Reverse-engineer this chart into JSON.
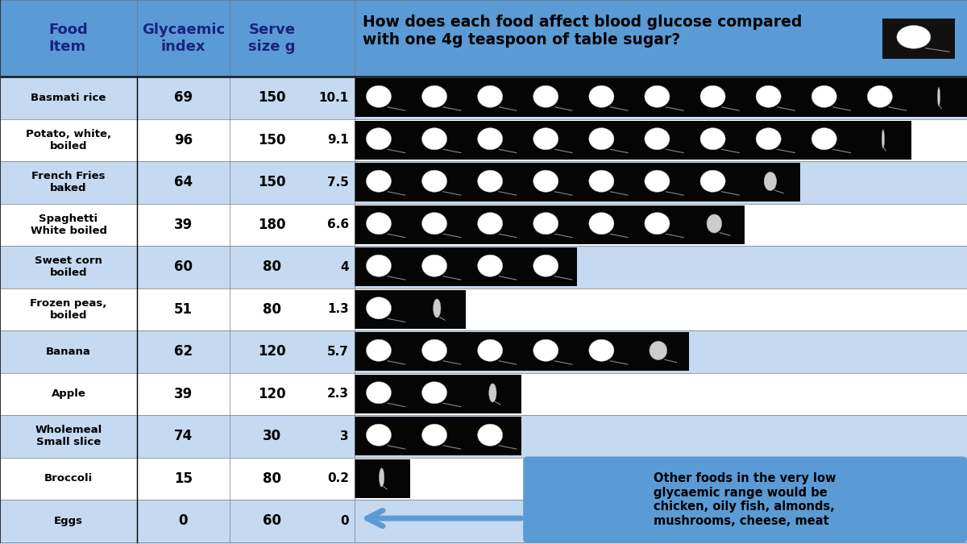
{
  "foods": [
    {
      "name": "Basmati rice",
      "gi": 69,
      "serve": 150,
      "gl": 10.1
    },
    {
      "name": "Potato, white,\nboiled",
      "gi": 96,
      "serve": 150,
      "gl": 9.1
    },
    {
      "name": "French Fries\nbaked",
      "gi": 64,
      "serve": 150,
      "gl": 7.5
    },
    {
      "name": "Spaghetti\nWhite boiled",
      "gi": 39,
      "serve": 180,
      "gl": 6.6
    },
    {
      "name": "Sweet corn\nboiled",
      "gi": 60,
      "serve": 80,
      "gl": 4.0
    },
    {
      "name": "Frozen peas,\nboiled",
      "gi": 51,
      "serve": 80,
      "gl": 1.3
    },
    {
      "name": "Banana",
      "gi": 62,
      "serve": 120,
      "gl": 5.7
    },
    {
      "name": "Apple",
      "gi": 39,
      "serve": 120,
      "gl": 2.3
    },
    {
      "name": "Wholemeal\nSmall slice",
      "gi": 74,
      "serve": 30,
      "gl": 3.0
    },
    {
      "name": "Broccoli",
      "gi": 15,
      "serve": 80,
      "gl": 0.2
    },
    {
      "name": "Eggs",
      "gi": 0,
      "serve": 60,
      "gl": 0
    }
  ],
  "header_bg": "#5b9bd5",
  "header_text_color": "#1a237e",
  "row_bg_light": "#c5d9f1",
  "row_bg_white": "#ffffff",
  "chart_area_bg": "#c5d9f1",
  "black": "#050505",
  "annotation_bg": "#5b9bd5",
  "annotation_text": "Other foods in the very low\nglycaemic range would be\nchicken, oily fish, almonds,\nmushrooms, cheese, meat",
  "title": "How does each food affect blood glucose compared\nwith one 4g teaspoon of table sugar?",
  "col1_header": "Food\nItem",
  "col2_header": "Glycaemic\nindex",
  "col3_header": "Serve\nsize g",
  "max_spoons": 11,
  "fig_w": 12.0,
  "fig_h": 6.75,
  "dpi": 100
}
